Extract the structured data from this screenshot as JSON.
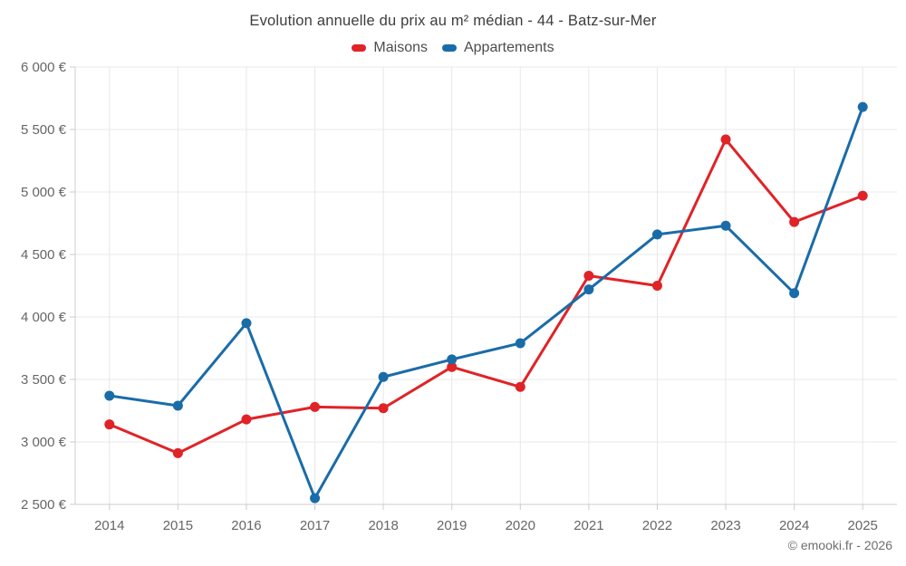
{
  "title": "Evolution annuelle du prix au m² médian - 44 - Batz-sur-Mer",
  "footer": "© emooki.fr - 2026",
  "colors": {
    "maisons_red": "#e02327",
    "appartements_blue": "#1a6ca8",
    "gridline": "#e8e8e8",
    "axis": "#cccccc",
    "axis_text": "#666666",
    "title_text": "#3d3d3d"
  },
  "chart_data": {
    "type": "line",
    "title": "Evolution annuelle du prix au m² médian - 44 - Batz-sur-Mer",
    "categories": [
      "2014",
      "2015",
      "2016",
      "2017",
      "2018",
      "2019",
      "2020",
      "2021",
      "2022",
      "2023",
      "2024",
      "2025"
    ],
    "series": [
      {
        "name": "Maisons",
        "color": "#e02327",
        "values": [
          3140,
          2910,
          3180,
          3280,
          3270,
          3600,
          3440,
          4330,
          4250,
          5420,
          4760,
          4970
        ]
      },
      {
        "name": "Appartements",
        "color": "#1a6ca8",
        "values": [
          3370,
          3290,
          3950,
          2550,
          3520,
          3660,
          3790,
          4220,
          4660,
          4730,
          4190,
          5680
        ]
      }
    ],
    "xlabel": "",
    "ylabel": "",
    "ylim": [
      2500,
      6000
    ],
    "ytick_step": 500,
    "ytick_format": "{value} €",
    "grid": "both",
    "legend_position": "top",
    "marker": "circle"
  }
}
